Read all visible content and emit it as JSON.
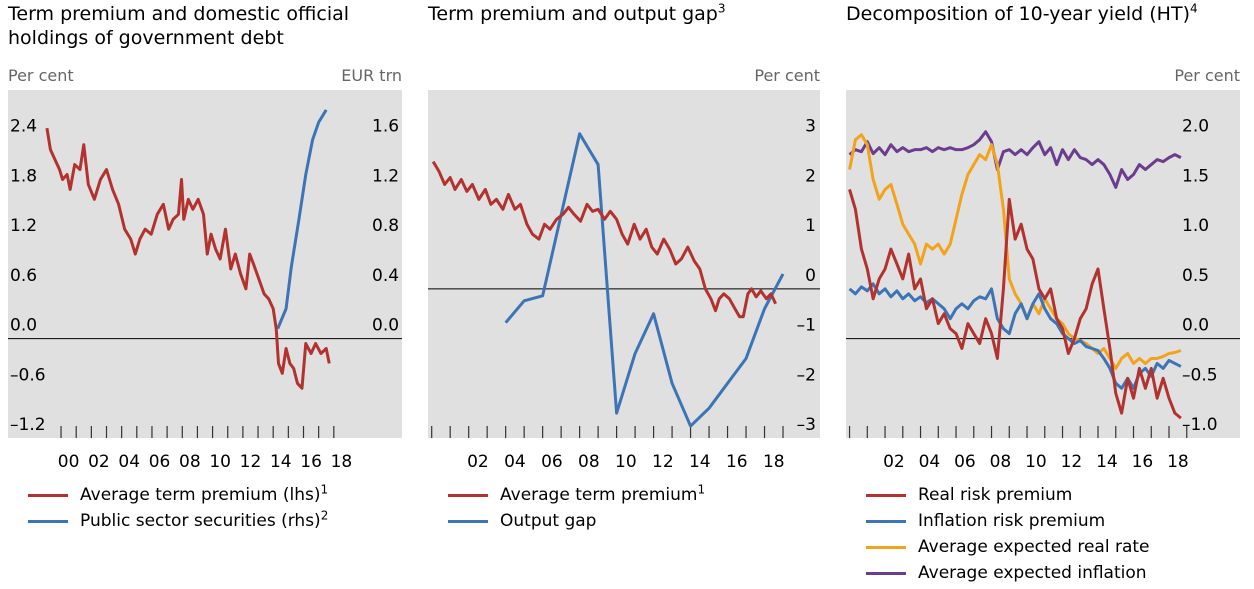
{
  "chart_data": [
    {
      "type": "line",
      "title": "Term premium and domestic official holdings of government debt",
      "ylabel": "Per cent",
      "y2label": "EUR trn",
      "xlim": [
        1996.5,
        2022.5
      ],
      "ylim": [
        -1.2,
        3.0
      ],
      "y2lim": [
        -0.8,
        2.0
      ],
      "xticks": [
        {
          "value": 2000,
          "label": "00"
        },
        {
          "value": 2002,
          "label": "02"
        },
        {
          "value": 2004,
          "label": "04"
        },
        {
          "value": 2006,
          "label": "06"
        },
        {
          "value": 2008,
          "label": "08"
        },
        {
          "value": 2010,
          "label": "10"
        },
        {
          "value": 2012,
          "label": "12"
        },
        {
          "value": 2014,
          "label": "14"
        },
        {
          "value": 2016,
          "label": "16"
        },
        {
          "value": 2018,
          "label": "18"
        }
      ],
      "xminor": [
        2000,
        2001,
        2002,
        2003,
        2004,
        2005,
        2006,
        2007,
        2008,
        2009,
        2010,
        2011,
        2012,
        2013,
        2014,
        2015,
        2016,
        2017,
        2018
      ],
      "yticks": [
        {
          "value": -1.2,
          "label": "–1.2"
        },
        {
          "value": -0.6,
          "label": "–0.6"
        },
        {
          "value": 0,
          "label": "0.0"
        },
        0.6,
        1.2,
        1.8,
        2.4
      ],
      "y2ticks": [
        {
          "value": 0,
          "label": "0.0"
        },
        0.4,
        0.8,
        1.2,
        1.6
      ],
      "zero_line": true,
      "y_side": "left",
      "series": [
        {
          "name": "Average term premium (lhs)",
          "note": "1",
          "color": "#b2322f",
          "x": [
            1999.07,
            1999.3,
            1999.6,
            1999.9,
            2000.1,
            2000.4,
            2000.6,
            2000.9,
            2001.25,
            2001.5,
            2001.8,
            2002.2,
            2002.6,
            2003.0,
            2003.4,
            2003.8,
            2004.2,
            2004.6,
            2004.9,
            2005.2,
            2005.55,
            2005.95,
            2006.35,
            2006.75,
            2007.1,
            2007.4,
            2007.75,
            2007.95,
            2008.1,
            2008.4,
            2008.7,
            2009.05,
            2009.4,
            2009.65,
            2009.9,
            2010.2,
            2010.5,
            2010.85,
            2011.2,
            2011.5,
            2011.85,
            2012.2,
            2012.45,
            2012.7,
            2013.05,
            2013.4,
            2013.7,
            2014.0,
            2014.2,
            2014.35,
            2014.6,
            2014.85,
            2015.1,
            2015.35,
            2015.6,
            2015.9,
            2016.15,
            2016.5,
            2016.8,
            2017.15,
            2017.5,
            2017.7
          ],
          "values": [
            2.54,
            2.28,
            2.16,
            2.04,
            1.92,
            1.98,
            1.8,
            2.1,
            2.04,
            2.34,
            1.86,
            1.68,
            1.92,
            2.04,
            1.8,
            1.62,
            1.32,
            1.2,
            1.02,
            1.2,
            1.32,
            1.26,
            1.5,
            1.62,
            1.32,
            1.44,
            1.5,
            1.92,
            1.44,
            1.68,
            1.56,
            1.68,
            1.5,
            1.02,
            1.26,
            1.08,
            0.96,
            1.32,
            0.84,
            1.02,
            0.78,
            0.6,
            1.02,
            0.9,
            0.72,
            0.54,
            0.48,
            0.36,
            0.12,
            -0.3,
            -0.42,
            -0.12,
            -0.3,
            -0.36,
            -0.54,
            -0.6,
            -0.06,
            -0.18,
            -0.06,
            -0.18,
            -0.12,
            -0.3
          ]
        },
        {
          "name": "Public sector securities (rhs)",
          "note": "2",
          "color": "#3d74b5",
          "axis": "y2",
          "x": [
            2014.3,
            2014.85,
            2015.2,
            2015.7,
            2016.15,
            2016.6,
            2017.0,
            2017.5
          ],
          "values": [
            0.08,
            0.24,
            0.58,
            0.96,
            1.32,
            1.6,
            1.74,
            1.84
          ]
        }
      ]
    },
    {
      "type": "line",
      "title": "Term premium and output gap",
      "title_note": "3",
      "ylabel": "Per cent",
      "xlim": [
        1999.8,
        2021
      ],
      "ylim": [
        -3,
        4
      ],
      "xticks": [
        {
          "value": 2002,
          "label": "02"
        },
        {
          "value": 2004,
          "label": "04"
        },
        {
          "value": 2006,
          "label": "06"
        },
        {
          "value": 2008,
          "label": "08"
        },
        {
          "value": 2010,
          "label": "10"
        },
        {
          "value": 2012,
          "label": "12"
        },
        {
          "value": 2014,
          "label": "14"
        },
        {
          "value": 2016,
          "label": "16"
        },
        {
          "value": 2018,
          "label": "18"
        }
      ],
      "xminor": [
        2000,
        2001,
        2002,
        2003,
        2004,
        2005,
        2006,
        2007,
        2008,
        2009,
        2010,
        2011,
        2012,
        2013,
        2014,
        2015,
        2016,
        2017,
        2018,
        2019
      ],
      "yticks": [
        {
          "value": -3,
          "label": "–3"
        },
        {
          "value": -2,
          "label": "–2"
        },
        {
          "value": -1,
          "label": "–1"
        },
        0,
        1,
        2,
        3
      ],
      "zero_line": true,
      "y_side": "right",
      "series": [
        {
          "name": "Average term premium",
          "note": "1",
          "color": "#b2322f",
          "x": [
            2000.08,
            2000.4,
            2000.7,
            2001.0,
            2001.26,
            2001.6,
            2001.9,
            2002.2,
            2002.55,
            2002.9,
            2003.2,
            2003.5,
            2003.85,
            2004.15,
            2004.5,
            2004.8,
            2005.15,
            2005.45,
            2005.8,
            2006.1,
            2006.4,
            2006.75,
            2007.1,
            2007.4,
            2007.7,
            2008.05,
            2008.4,
            2008.7,
            2009.0,
            2009.35,
            2009.66,
            2010.0,
            2010.3,
            2010.6,
            2010.95,
            2011.27,
            2011.6,
            2011.9,
            2012.2,
            2012.55,
            2012.87,
            2013.2,
            2013.5,
            2013.85,
            2014.2,
            2014.5,
            2014.8,
            2015.1,
            2015.35,
            2015.55,
            2015.8,
            2016.1,
            2016.4,
            2016.65,
            2016.85,
            2017.1,
            2017.3,
            2017.55,
            2017.8,
            2018.1,
            2018.35,
            2018.6
          ],
          "values": [
            2.56,
            2.36,
            2.1,
            2.24,
            2.0,
            2.2,
            1.96,
            2.1,
            1.8,
            2.0,
            1.7,
            1.8,
            1.6,
            1.9,
            1.6,
            1.7,
            1.3,
            1.1,
            1.0,
            1.3,
            1.2,
            1.4,
            1.5,
            1.64,
            1.5,
            1.36,
            1.7,
            1.56,
            1.6,
            1.4,
            1.56,
            1.4,
            1.1,
            0.9,
            1.3,
            1.0,
            1.2,
            0.84,
            0.7,
            1.0,
            0.8,
            0.5,
            0.6,
            0.84,
            0.56,
            0.4,
            0.0,
            -0.2,
            -0.44,
            -0.2,
            -0.1,
            -0.2,
            -0.4,
            -0.56,
            -0.56,
            -0.1,
            0.0,
            -0.16,
            -0.04,
            -0.2,
            -0.1,
            -0.3
          ]
        },
        {
          "name": "Output gap",
          "color": "#3d74b5",
          "x": [
            2004,
            2005,
            2006,
            2008,
            2009,
            2010,
            2011,
            2012,
            2013,
            2014,
            2015,
            2016,
            2017,
            2018,
            2019
          ],
          "values": [
            -0.68,
            -0.24,
            -0.14,
            3.12,
            2.5,
            -2.5,
            -1.3,
            -0.5,
            -1.9,
            -2.76,
            -2.4,
            -1.9,
            -1.4,
            -0.4,
            0.3
          ]
        }
      ]
    },
    {
      "type": "line",
      "title": "Decomposition of 10-year yield (HT)",
      "title_note": "4",
      "ylabel": "Per cent",
      "xlim": [
        1999.8,
        2022
      ],
      "ylim": [
        -1.0,
        2.5
      ],
      "xticks": [
        {
          "value": 2002,
          "label": "02"
        },
        {
          "value": 2004,
          "label": "04"
        },
        {
          "value": 2006,
          "label": "06"
        },
        {
          "value": 2008,
          "label": "08"
        },
        {
          "value": 2010,
          "label": "10"
        },
        {
          "value": 2012,
          "label": "12"
        },
        {
          "value": 2014,
          "label": "14"
        },
        {
          "value": 2016,
          "label": "16"
        },
        {
          "value": 2018,
          "label": "18"
        }
      ],
      "xminor": [
        2000,
        2001,
        2002,
        2003,
        2004,
        2005,
        2006,
        2007,
        2008,
        2009,
        2010,
        2011,
        2012,
        2013,
        2014,
        2015,
        2016,
        2017,
        2018,
        2019
      ],
      "yticks": [
        {
          "value": -1,
          "label": "–1.0"
        },
        {
          "value": -0.5,
          "label": "–0.5"
        },
        {
          "value": 0,
          "label": "0.0"
        },
        0.5,
        {
          "value": 1,
          "label": "1.0"
        },
        1.5,
        {
          "value": 2,
          "label": "2.0"
        }
      ],
      "zero_line": true,
      "y_side": "right",
      "x": [
        2000,
        2000.33,
        2000.67,
        2001,
        2001.33,
        2001.67,
        2002,
        2002.33,
        2002.67,
        2003,
        2003.33,
        2003.67,
        2004,
        2004.33,
        2004.67,
        2005,
        2005.33,
        2005.67,
        2006,
        2006.33,
        2006.67,
        2007,
        2007.33,
        2007.67,
        2008,
        2008.33,
        2008.67,
        2009,
        2009.33,
        2009.67,
        2010,
        2010.33,
        2010.67,
        2011,
        2011.33,
        2011.67,
        2012,
        2012.33,
        2012.67,
        2013,
        2013.33,
        2013.67,
        2014,
        2014.33,
        2014.67,
        2015,
        2015.33,
        2015.67,
        2016,
        2016.33,
        2016.67,
        2017,
        2017.33,
        2017.67,
        2018,
        2018.33,
        2018.67
      ],
      "series": [
        {
          "name": "Real risk premium",
          "color": "#b2322f",
          "values": [
            1.5,
            1.3,
            0.9,
            0.7,
            0.4,
            0.6,
            0.7,
            0.9,
            0.75,
            0.6,
            0.85,
            0.5,
            0.6,
            0.3,
            0.4,
            0.15,
            0.25,
            0.1,
            0.05,
            -0.1,
            0.15,
            0.05,
            -0.05,
            0.2,
            0.05,
            -0.2,
            0.5,
            1.4,
            1.0,
            1.15,
            0.9,
            0.8,
            0.5,
            0.4,
            0.5,
            0.2,
            0.1,
            -0.15,
            0.0,
            0.2,
            0.3,
            0.55,
            0.7,
            0.3,
            -0.1,
            -0.55,
            -0.75,
            -0.4,
            -0.6,
            -0.3,
            -0.5,
            -0.3,
            -0.6,
            -0.4,
            -0.6,
            -0.75,
            -0.8
          ]
        },
        {
          "name": "Inflation risk premium",
          "color": "#3d74b5",
          "values": [
            0.5,
            0.45,
            0.52,
            0.48,
            0.55,
            0.45,
            0.5,
            0.42,
            0.48,
            0.4,
            0.45,
            0.38,
            0.42,
            0.36,
            0.4,
            0.35,
            0.3,
            0.2,
            0.3,
            0.35,
            0.3,
            0.38,
            0.42,
            0.4,
            0.5,
            0.2,
            0.1,
            0.05,
            0.25,
            0.35,
            0.2,
            0.35,
            0.45,
            0.3,
            0.2,
            0.15,
            0.05,
            0.0,
            -0.05,
            -0.02,
            -0.08,
            -0.1,
            -0.12,
            -0.2,
            -0.3,
            -0.45,
            -0.5,
            -0.4,
            -0.5,
            -0.35,
            -0.3,
            -0.38,
            -0.25,
            -0.3,
            -0.22,
            -0.25,
            -0.28
          ]
        },
        {
          "name": "Average expected real rate",
          "color": "#f2a31b",
          "values": [
            1.7,
            2.0,
            2.05,
            1.95,
            1.6,
            1.4,
            1.5,
            1.55,
            1.35,
            1.15,
            1.05,
            0.95,
            0.75,
            0.95,
            0.9,
            0.95,
            0.85,
            0.95,
            1.2,
            1.45,
            1.65,
            1.75,
            1.85,
            1.8,
            1.95,
            1.75,
            1.3,
            0.6,
            0.45,
            0.35,
            0.2,
            0.35,
            0.25,
            0.4,
            0.3,
            0.2,
            0.15,
            0.05,
            0.0,
            -0.02,
            -0.05,
            -0.1,
            -0.15,
            -0.1,
            -0.2,
            -0.3,
            -0.2,
            -0.15,
            -0.25,
            -0.2,
            -0.25,
            -0.2,
            -0.2,
            -0.18,
            -0.15,
            -0.14,
            -0.12
          ]
        },
        {
          "name": "Average expected inflation",
          "color": "#6b3d8e",
          "values": [
            1.85,
            1.9,
            1.88,
            1.98,
            1.86,
            1.92,
            1.85,
            1.95,
            1.88,
            1.92,
            1.88,
            1.9,
            1.9,
            1.92,
            1.88,
            1.92,
            1.9,
            1.92,
            1.9,
            1.9,
            1.92,
            1.95,
            2.0,
            2.08,
            1.98,
            1.7,
            1.88,
            1.9,
            1.85,
            1.9,
            1.85,
            1.92,
            1.98,
            1.85,
            1.92,
            1.75,
            1.9,
            1.8,
            1.9,
            1.82,
            1.8,
            1.75,
            1.8,
            1.75,
            1.65,
            1.52,
            1.7,
            1.6,
            1.65,
            1.75,
            1.7,
            1.75,
            1.8,
            1.78,
            1.82,
            1.85,
            1.82
          ]
        }
      ]
    }
  ]
}
